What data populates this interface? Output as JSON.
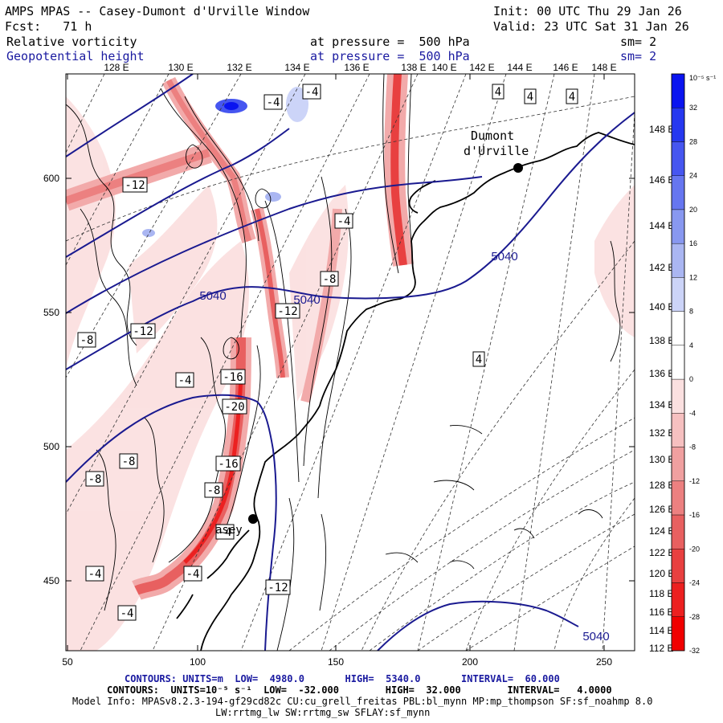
{
  "header": {
    "title": "AMPS MPAS -- Casey-Dumont d'Urville Window",
    "init": "Init: 00 UTC Thu 29 Jan 26",
    "forecast": "Fcst:   71 h",
    "valid": "Valid: 23 UTC Sat 31 Jan 26",
    "field1_name": "Relative vorticity",
    "field1_level": "at pressure =  500 hPa",
    "field1_sm": "sm= 2",
    "field2_name": "Geopotential height",
    "field2_level": "at pressure =  500 hPa",
    "field2_sm": "sm= 2"
  },
  "map": {
    "top_lon_labels": [
      "128 E",
      "130 E",
      "132 E",
      "134 E",
      "136 E",
      "138 E",
      "140 E",
      "142 E",
      "144 E",
      "146 E",
      "148 E"
    ],
    "right_lon_labels": [
      "148 E",
      "146 E",
      "144 E",
      "142 E",
      "140 E",
      "138 E",
      "136 E",
      "134 E",
      "132 E",
      "130 E",
      "128 E",
      "126 E",
      "124 E",
      "122 E",
      "120 E",
      "118 E",
      "116 E",
      "114 E",
      "112 E"
    ],
    "x_axis_ticks": [
      "50",
      "100",
      "150",
      "200",
      "250"
    ],
    "y_axis_ticks": [
      "600",
      "550",
      "500",
      "450"
    ],
    "station1": "Dumont",
    "station2": "d'Urville",
    "casey_label": "asey",
    "height_contour_labels": [
      "5040",
      "5040",
      "5040",
      "5040"
    ],
    "vorticity_labels": [
      "-4",
      "-4",
      "-4",
      "-8",
      "-12",
      "-12",
      "-8",
      "-4",
      "-4",
      "-4",
      "-12",
      "-16",
      "-20",
      "-16",
      "-8",
      "-4",
      "-8",
      "-4",
      "-8",
      "-12",
      "4",
      "4",
      "4",
      "4"
    ]
  },
  "colorbar": {
    "unit": "10⁻⁵ s⁻¹",
    "labels": [
      "32",
      "28",
      "24",
      "20",
      "16",
      "12",
      "8",
      "4",
      "0",
      "-4",
      "-8",
      "-12",
      "-16",
      "-20",
      "-24",
      "-28",
      "-32"
    ],
    "colors": [
      "#0a14f0",
      "#2638f0",
      "#4656f0",
      "#6676f0",
      "#8898f0",
      "#aab6f2",
      "#ccd4f8",
      "#ffffff",
      "#ffffff",
      "#fbe0e0",
      "#f6c0c0",
      "#f0a0a0",
      "#ec8080",
      "#e86060",
      "#e84040",
      "#ec2020",
      "#f00000"
    ]
  },
  "footer": {
    "line1": "CONTOURS: UNITS=m  LOW=  4980.0       HIGH=  5340.0       INTERVAL=  60.000",
    "line2": "CONTOURS:  UNITS=10⁻⁵ s⁻¹  LOW=  -32.000        HIGH=  32.000        INTERVAL=   4.0000",
    "line3": "Model Info: MPASv8.2.3-194-gf29cd82c CU:cu_grell_freitas PBL:bl_mynn MP:mp_thompson SF:sf_noahmp 8.0",
    "line4": "LW:rrtmg_lw SW:rrtmg_sw SFLAY:sf_mynn"
  },
  "colors": {
    "height_contour": "#1a1a90",
    "positive_vort": "#0a14f0",
    "negative_vort": "#f00000"
  }
}
